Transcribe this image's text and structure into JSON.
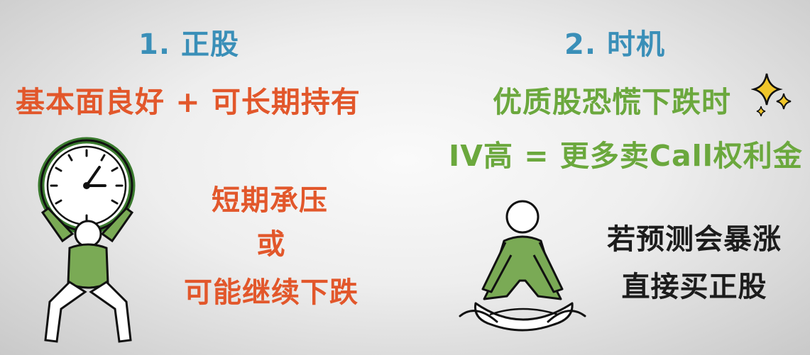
{
  "left": {
    "heading": "1. 正股",
    "condition": "基本面良好 + 可长期持有",
    "risk_lines": [
      "短期承压",
      "或",
      "可能继续下跌"
    ]
  },
  "right": {
    "heading": "2. 时机",
    "line1": "优质股恐慌下跌时",
    "line2": "IV高 = 更多卖Call权利金",
    "note_lines": [
      "若预测会暴涨",
      "直接买正股"
    ]
  },
  "icons": {
    "clock_figure": "person-holding-clock-icon",
    "meditating_figure": "meditating-person-icon",
    "sparkle": "sparkle-icon"
  },
  "colors": {
    "heading": "#3a8fb8",
    "orange": "#e2572b",
    "green": "#6ba83d",
    "figure_fill": "#7aaa55",
    "dark": "#1c1c1c"
  }
}
